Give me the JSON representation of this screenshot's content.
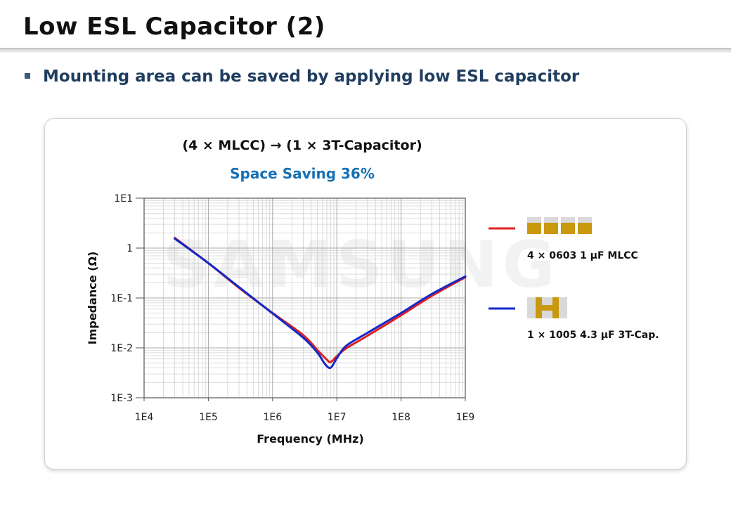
{
  "slide": {
    "title": "Low ESL Capacitor (2)",
    "bullet": "Mounting area can be saved by applying low ESL capacitor"
  },
  "panel": {
    "equation": "(4 × MLCC) → (1 × 3T-Capacitor)",
    "saving": "Space Saving 36%"
  },
  "colors": {
    "accent_blue": "#1670b5",
    "series_red": "#e02020",
    "series_blue": "#1428c8",
    "pad_gold": "#c9980f"
  },
  "chart_data": {
    "type": "line",
    "xlabel": "Frequency (MHz)",
    "ylabel": "Impedance (Ω)",
    "xscale": "log",
    "yscale": "log",
    "xlim": [
      10000,
      1000000000
    ],
    "ylim": [
      0.001,
      10
    ],
    "x_ticks": [
      "1E4",
      "1E5",
      "1E6",
      "1E7",
      "1E8",
      "1E9"
    ],
    "y_ticks": [
      "1E-3",
      "1E-2",
      "1E-1",
      "1",
      "1E1"
    ],
    "grid": true,
    "legend": "right",
    "series": [
      {
        "name": "4 × 0603 1 μF MLCC",
        "color": "#e02020",
        "points": [
          [
            30000,
            1.6
          ],
          [
            100000,
            0.5
          ],
          [
            300000,
            0.16
          ],
          [
            1000000,
            0.05
          ],
          [
            3000000,
            0.018
          ],
          [
            5000000,
            0.009
          ],
          [
            7000000,
            0.0058
          ],
          [
            8000000,
            0.0052
          ],
          [
            10000000,
            0.0068
          ],
          [
            14000000,
            0.0098
          ],
          [
            30000000,
            0.0175
          ],
          [
            100000000,
            0.045
          ],
          [
            300000000,
            0.11
          ],
          [
            1000000000,
            0.26
          ]
        ]
      },
      {
        "name": "1 × 1005 4.3 μF 3T-Cap.",
        "color": "#1428c8",
        "points": [
          [
            30000,
            1.55
          ],
          [
            100000,
            0.5
          ],
          [
            300000,
            0.165
          ],
          [
            1000000,
            0.049
          ],
          [
            3000000,
            0.016
          ],
          [
            5000000,
            0.008
          ],
          [
            6500000,
            0.0048
          ],
          [
            8000000,
            0.004
          ],
          [
            10000000,
            0.0062
          ],
          [
            14000000,
            0.011
          ],
          [
            30000000,
            0.02
          ],
          [
            100000000,
            0.05
          ],
          [
            300000000,
            0.12
          ],
          [
            1000000000,
            0.27
          ]
        ]
      }
    ]
  }
}
